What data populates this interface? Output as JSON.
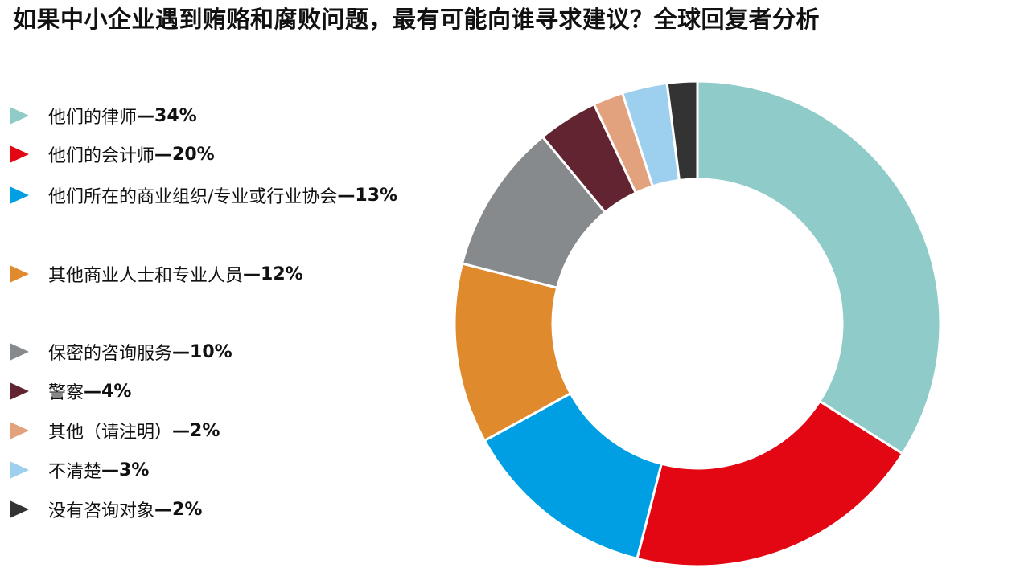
{
  "title": "如果中小企业遇到贿赂和腐败问题，最有可能向谁寻求建议？全球回复者分析",
  "chart_data": {
    "type": "pie",
    "donut": true,
    "title": "如果中小企业遇到贿赂和腐败问题，最有可能向谁寻求建议？全球回复者分析",
    "slices": [
      {
        "label": "他们的律师",
        "value": 34,
        "value_text": "—34%",
        "color": "#8ecbc9"
      },
      {
        "label": "他们的会计师",
        "value": 20,
        "value_text": "—20%",
        "color": "#e30613"
      },
      {
        "label": "他们所在的商业组织/专业或行业协会",
        "value": 13,
        "value_text": "—13%",
        "color": "#009fe3"
      },
      {
        "label": "其他商业人士和专业人员",
        "value": 12,
        "value_text": "—12%",
        "color": "#e08a2e"
      },
      {
        "label": "保密的咨询服务",
        "value": 10,
        "value_text": "—10%",
        "color": "#878a8c"
      },
      {
        "label": "警察",
        "value": 4,
        "value_text": "—4%",
        "color": "#632432"
      },
      {
        "label": "其他（请注明）",
        "value": 2,
        "value_text": "—2%",
        "color": "#e2a27d"
      },
      {
        "label": "不清楚",
        "value": 3,
        "value_text": "—3%",
        "color": "#9dcfef"
      },
      {
        "label": "没有咨询对象",
        "value": 2,
        "value_text": "—2%",
        "color": "#333333"
      }
    ],
    "legend_position": "left"
  }
}
